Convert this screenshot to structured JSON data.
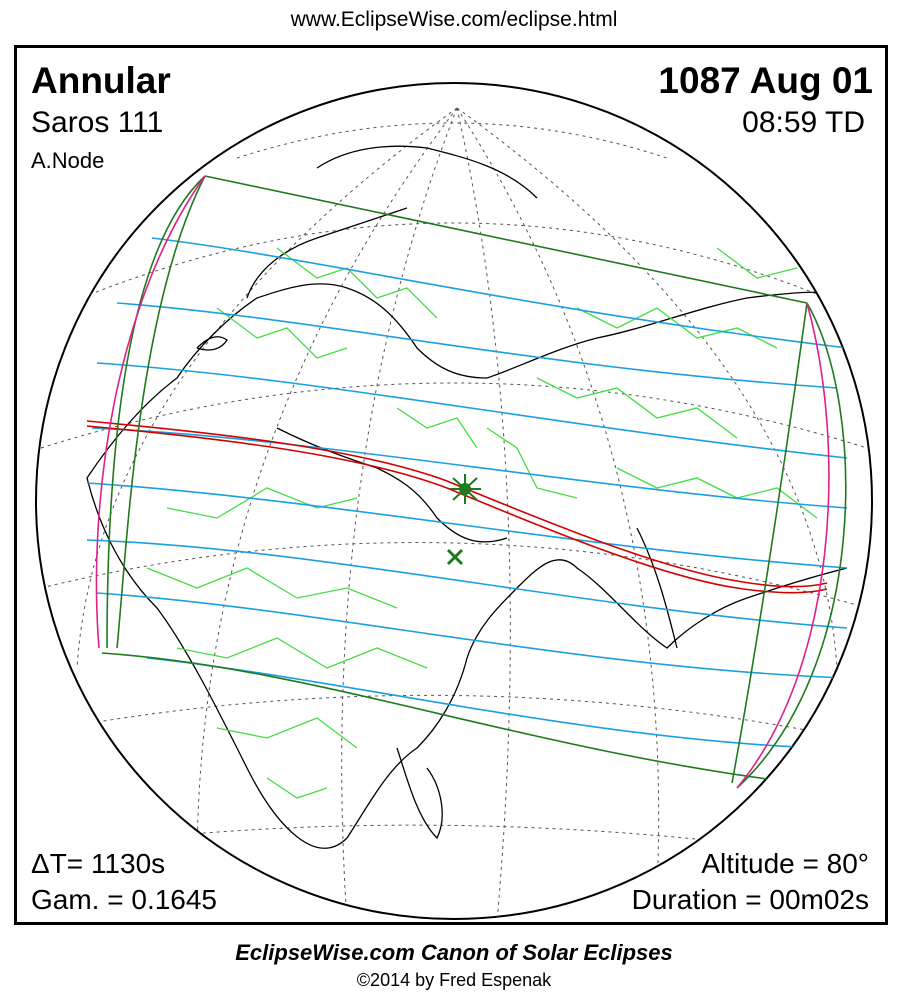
{
  "header": {
    "url": "www.EclipseWise.com/eclipse.html"
  },
  "eclipse": {
    "type": "Annular",
    "date": "1087 Aug 01",
    "saros": "Saros 111",
    "time": "08:59 TD",
    "node": "A.Node",
    "delta_t": "ΔT=   1130s",
    "gamma": "Gam. = 0.1645",
    "altitude": "Altitude = 80°",
    "duration": "Duration = 00m02s"
  },
  "footer": {
    "canon": "EclipseWise.com Canon of Solar Eclipses",
    "copyright": "©2014 by Fred Espenak"
  },
  "colors": {
    "central_path": "#d40000",
    "penumbra_limits": "#1e7a1e",
    "penumbral_contours": "#1aa0e0",
    "rise_set_curves": "#e0208a",
    "borders": "#44dd44",
    "coastlines": "#000000",
    "grid": "#555555"
  },
  "markers": {
    "greatest_eclipse": "star-marker",
    "subsolar_point": "x-marker"
  }
}
